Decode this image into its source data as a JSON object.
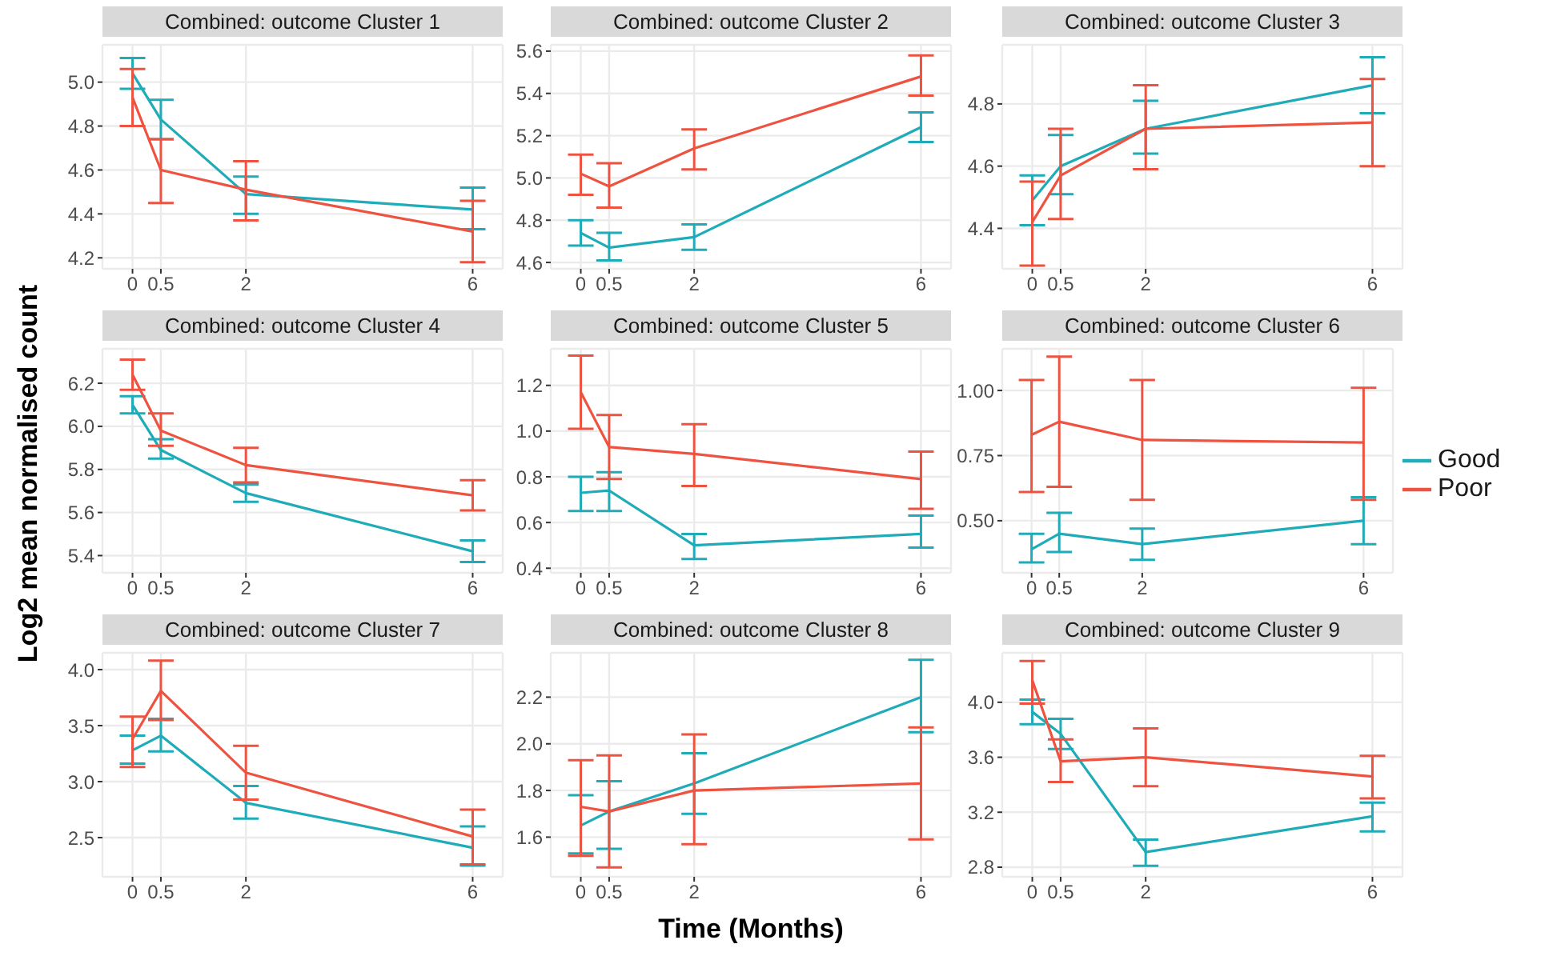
{
  "chart_data": [
    {
      "type": "line",
      "title": "Combined: outcome Cluster 1",
      "x": [
        0,
        0.5,
        2,
        6
      ],
      "xlim": [
        -0.53,
        6.53
      ],
      "xticks": [
        0,
        0.5,
        2,
        6
      ],
      "ylim": [
        4.15,
        5.17
      ],
      "yticks": [
        {
          "value": 4.2,
          "label": "4.2"
        },
        {
          "value": 4.4,
          "label": "4.4"
        },
        {
          "value": 4.6,
          "label": "4.6"
        },
        {
          "value": 4.8,
          "label": "4.8"
        },
        {
          "value": 5,
          "label": "5.0"
        }
      ],
      "grid": true,
      "series": [
        {
          "color": "#1fabb8",
          "values": [
            5.04,
            4.83,
            4.49,
            4.42
          ],
          "errors": [
            [
              4.97,
              5.11
            ],
            [
              4.74,
              4.92
            ],
            [
              4.4,
              4.57
            ],
            [
              4.33,
              4.52
            ]
          ]
        },
        {
          "color": "#ed5340",
          "values": [
            4.93,
            4.6,
            4.51,
            4.32
          ],
          "errors": [
            [
              4.8,
              5.06
            ],
            [
              4.45,
              4.74
            ],
            [
              4.37,
              4.64
            ],
            [
              4.18,
              4.46
            ]
          ]
        }
      ]
    },
    {
      "type": "line",
      "title": "Combined: outcome Cluster 2",
      "x": [
        0,
        0.5,
        2,
        6
      ],
      "xlim": [
        -0.53,
        6.53
      ],
      "xticks": [
        0,
        0.5,
        2,
        6
      ],
      "ylim": [
        4.57,
        5.63
      ],
      "yticks": [
        {
          "value": 4.6,
          "label": "4.6"
        },
        {
          "value": 4.8,
          "label": "4.8"
        },
        {
          "value": 5,
          "label": "5.0"
        },
        {
          "value": 5.2,
          "label": "5.2"
        },
        {
          "value": 5.4,
          "label": "5.4"
        },
        {
          "value": 5.6,
          "label": "5.6"
        }
      ],
      "grid": true,
      "series": [
        {
          "color": "#1fabb8",
          "values": [
            4.74,
            4.67,
            4.72,
            5.24
          ],
          "errors": [
            [
              4.68,
              4.8
            ],
            [
              4.61,
              4.74
            ],
            [
              4.66,
              4.78
            ],
            [
              5.17,
              5.31
            ]
          ]
        },
        {
          "color": "#ed5340",
          "values": [
            5.02,
            4.96,
            5.14,
            5.48
          ],
          "errors": [
            [
              4.92,
              5.11
            ],
            [
              4.86,
              5.07
            ],
            [
              5.04,
              5.23
            ],
            [
              5.39,
              5.58
            ]
          ]
        }
      ]
    },
    {
      "type": "line",
      "title": "Combined: outcome Cluster 3",
      "x": [
        0,
        0.5,
        2,
        6
      ],
      "xlim": [
        -0.53,
        6.53
      ],
      "xticks": [
        0,
        0.5,
        2,
        6
      ],
      "ylim": [
        4.27,
        4.99
      ],
      "yticks": [
        {
          "value": 4.4,
          "label": "4.4"
        },
        {
          "value": 4.6,
          "label": "4.6"
        },
        {
          "value": 4.8,
          "label": "4.8"
        }
      ],
      "grid": true,
      "series": [
        {
          "color": "#1fabb8",
          "values": [
            4.49,
            4.6,
            4.72,
            4.86
          ],
          "errors": [
            [
              4.41,
              4.57
            ],
            [
              4.51,
              4.7
            ],
            [
              4.64,
              4.81
            ],
            [
              4.77,
              4.95
            ]
          ]
        },
        {
          "color": "#ed5340",
          "values": [
            4.42,
            4.57,
            4.72,
            4.74
          ],
          "errors": [
            [
              4.28,
              4.55
            ],
            [
              4.43,
              4.72
            ],
            [
              4.59,
              4.86
            ],
            [
              4.6,
              4.88
            ]
          ]
        }
      ]
    },
    {
      "type": "line",
      "title": "Combined: outcome Cluster 4",
      "ylabel": "Log2 mean normalised count",
      "x": [
        0,
        0.5,
        2,
        6
      ],
      "xlim": [
        -0.53,
        6.53
      ],
      "xticks": [
        0,
        0.5,
        2,
        6
      ],
      "ylim": [
        5.32,
        6.36
      ],
      "yticks": [
        {
          "value": 5.4,
          "label": "5.4"
        },
        {
          "value": 5.6,
          "label": "5.6"
        },
        {
          "value": 5.8,
          "label": "5.8"
        },
        {
          "value": 6,
          "label": "6.0"
        },
        {
          "value": 6.2,
          "label": "6.2"
        }
      ],
      "grid": true,
      "series": [
        {
          "color": "#1fabb8",
          "values": [
            6.1,
            5.89,
            5.69,
            5.42
          ],
          "errors": [
            [
              6.06,
              6.14
            ],
            [
              5.85,
              5.94
            ],
            [
              5.65,
              5.73
            ],
            [
              5.37,
              5.47
            ]
          ]
        },
        {
          "color": "#ed5340",
          "values": [
            6.24,
            5.98,
            5.82,
            5.68
          ],
          "errors": [
            [
              6.17,
              6.31
            ],
            [
              5.91,
              6.06
            ],
            [
              5.74,
              5.9
            ],
            [
              5.61,
              5.75
            ]
          ]
        }
      ]
    },
    {
      "type": "line",
      "title": "Combined: outcome Cluster 5",
      "x": [
        0,
        0.5,
        2,
        6
      ],
      "xlim": [
        -0.53,
        6.53
      ],
      "xticks": [
        0,
        0.5,
        2,
        6
      ],
      "ylim": [
        0.38,
        1.36
      ],
      "yticks": [
        0.4,
        0.6,
        0.8,
        {
          "value": 1,
          "label": "1.0"
        },
        1.2
      ],
      "grid": true,
      "series": [
        {
          "color": "#1fabb8",
          "values": [
            0.73,
            0.74,
            0.5,
            0.55
          ],
          "errors": [
            [
              0.65,
              0.8
            ],
            [
              0.65,
              0.82
            ],
            [
              0.44,
              0.55
            ],
            [
              0.49,
              0.63
            ]
          ]
        },
        {
          "color": "#ed5340",
          "values": [
            1.17,
            0.93,
            0.9,
            0.79
          ],
          "errors": [
            [
              1.01,
              1.33
            ],
            [
              0.79,
              1.07
            ],
            [
              0.76,
              1.03
            ],
            [
              0.66,
              0.91
            ]
          ]
        }
      ]
    },
    {
      "type": "line",
      "title": "Combined: outcome Cluster 6",
      "x": [
        0,
        0.5,
        2,
        6
      ],
      "xlim": [
        -0.53,
        6.53
      ],
      "xticks": [
        0,
        0.5,
        2,
        6
      ],
      "ylim": [
        0.3,
        1.16
      ],
      "yticks": [
        {
          "value": 0.5,
          "label": "0.50"
        },
        {
          "value": 0.75,
          "label": "0.75"
        },
        {
          "value": 1,
          "label": "1.00"
        }
      ],
      "grid": true,
      "legend": "right",
      "series": [
        {
          "name": "Good",
          "color": "#1fabb8",
          "values": [
            0.39,
            0.45,
            0.41,
            0.5
          ],
          "errors": [
            [
              0.34,
              0.45
            ],
            [
              0.38,
              0.53
            ],
            [
              0.35,
              0.47
            ],
            [
              0.41,
              0.59
            ]
          ]
        },
        {
          "name": "Poor",
          "color": "#ed5340",
          "values": [
            0.83,
            0.88,
            0.81,
            0.8
          ],
          "errors": [
            [
              0.61,
              1.04
            ],
            [
              0.63,
              1.13
            ],
            [
              0.58,
              1.04
            ],
            [
              0.58,
              1.01
            ]
          ]
        }
      ]
    },
    {
      "type": "line",
      "title": "Combined: outcome Cluster 7",
      "x": [
        0,
        0.5,
        2,
        6
      ],
      "xlim": [
        -0.53,
        6.53
      ],
      "xticks": [
        0,
        0.5,
        2,
        6
      ],
      "ylim": [
        2.15,
        4.15
      ],
      "yticks": [
        2.5,
        {
          "value": 3,
          "label": "3.0"
        },
        3.5,
        {
          "value": 4,
          "label": "4.0"
        }
      ],
      "grid": true,
      "series": [
        {
          "color": "#1fabb8",
          "values": [
            3.28,
            3.41,
            2.81,
            2.41
          ],
          "errors": [
            [
              3.16,
              3.41
            ],
            [
              3.27,
              3.56
            ],
            [
              2.67,
              2.96
            ],
            [
              2.25,
              2.6
            ]
          ]
        },
        {
          "color": "#ed5340",
          "values": [
            3.38,
            3.81,
            3.08,
            2.51
          ],
          "errors": [
            [
              3.13,
              3.58
            ],
            [
              3.55,
              4.08
            ],
            [
              2.84,
              3.32
            ],
            [
              2.26,
              2.75
            ]
          ]
        }
      ]
    },
    {
      "type": "line",
      "title": "Combined: outcome Cluster 8",
      "xlabel": "Time (Months)",
      "x": [
        0,
        0.5,
        2,
        6
      ],
      "xlim": [
        -0.53,
        6.53
      ],
      "xticks": [
        0,
        0.5,
        2,
        6
      ],
      "ylim": [
        1.43,
        2.39
      ],
      "yticks": [
        1.6,
        1.8,
        {
          "value": 2,
          "label": "2.0"
        },
        2.2
      ],
      "grid": true,
      "series": [
        {
          "color": "#1fabb8",
          "values": [
            1.65,
            1.71,
            1.83,
            2.2
          ],
          "errors": [
            [
              1.53,
              1.78
            ],
            [
              1.55,
              1.84
            ],
            [
              1.7,
              1.96
            ],
            [
              2.05,
              2.36
            ]
          ]
        },
        {
          "color": "#ed5340",
          "values": [
            1.73,
            1.71,
            1.8,
            1.83
          ],
          "errors": [
            [
              1.52,
              1.93
            ],
            [
              1.47,
              1.95
            ],
            [
              1.57,
              2.04
            ],
            [
              1.59,
              2.07
            ]
          ]
        }
      ]
    },
    {
      "type": "line",
      "title": "Combined: outcome Cluster 9",
      "x": [
        0,
        0.5,
        2,
        6
      ],
      "xlim": [
        -0.53,
        6.53
      ],
      "xticks": [
        0,
        0.5,
        2,
        6
      ],
      "ylim": [
        2.73,
        4.36
      ],
      "yticks": [
        2.8,
        3.2,
        3.6,
        {
          "value": 4,
          "label": "4.0"
        }
      ],
      "grid": true,
      "series": [
        {
          "color": "#1fabb8",
          "values": [
            3.93,
            3.77,
            2.91,
            3.17
          ],
          "errors": [
            [
              3.84,
              4.02
            ],
            [
              3.66,
              3.88
            ],
            [
              2.81,
              3.0
            ],
            [
              3.06,
              3.27
            ]
          ]
        },
        {
          "color": "#ed5340",
          "values": [
            4.16,
            3.57,
            3.6,
            3.46
          ],
          "errors": [
            [
              3.99,
              4.3
            ],
            [
              3.42,
              3.73
            ],
            [
              3.39,
              3.81
            ],
            [
              3.3,
              3.61
            ]
          ]
        }
      ]
    }
  ]
}
